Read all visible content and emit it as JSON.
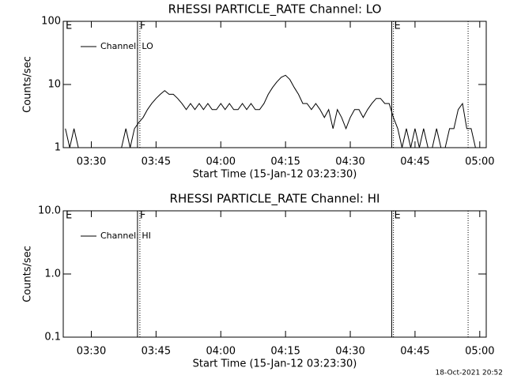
{
  "chart_data": [
    {
      "type": "line",
      "title": "RHESSI PARTICLE_RATE Channel: LO",
      "xlabel": "Start Time (15-Jan-12 03:23:30)",
      "ylabel": "Counts/sec",
      "log_y": true,
      "legend": "upper left",
      "xlim": [
        "03:23:30",
        "05:01:30"
      ],
      "xticks": [
        "03:30",
        "03:45",
        "04:00",
        "04:15",
        "04:30",
        "04:45",
        "05:00"
      ],
      "ylim": [
        1,
        100
      ],
      "yticks": [
        1,
        10,
        100
      ],
      "x": [
        "03:24",
        "03:25",
        "03:26",
        "03:27",
        "03:28",
        "03:29",
        "03:30",
        "03:31",
        "03:32",
        "03:33",
        "03:34",
        "03:35",
        "03:36",
        "03:37",
        "03:38",
        "03:39",
        "03:40",
        "03:41",
        "03:42",
        "03:43",
        "03:44",
        "03:45",
        "03:46",
        "03:47",
        "03:48",
        "03:49",
        "03:50",
        "03:51",
        "03:52",
        "03:53",
        "03:54",
        "03:55",
        "03:56",
        "03:57",
        "03:58",
        "03:59",
        "04:00",
        "04:01",
        "04:02",
        "04:03",
        "04:04",
        "04:05",
        "04:06",
        "04:07",
        "04:08",
        "04:09",
        "04:10",
        "04:11",
        "04:12",
        "04:13",
        "04:14",
        "04:15",
        "04:16",
        "04:17",
        "04:18",
        "04:19",
        "04:20",
        "04:21",
        "04:22",
        "04:23",
        "04:24",
        "04:25",
        "04:26",
        "04:27",
        "04:28",
        "04:29",
        "04:30",
        "04:31",
        "04:32",
        "04:33",
        "04:34",
        "04:35",
        "04:36",
        "04:37",
        "04:38",
        "04:39",
        "04:40",
        "04:41",
        "04:42",
        "04:43",
        "04:44",
        "04:45",
        "04:46",
        "04:47",
        "04:48",
        "04:49",
        "04:50",
        "04:51",
        "04:52",
        "04:53",
        "04:54",
        "04:55",
        "04:56",
        "04:57",
        "04:58",
        "04:59",
        "05:00"
      ],
      "series": [
        {
          "name": "Channel: LO",
          "color": "#000000",
          "values": [
            2,
            1,
            2,
            1,
            1,
            1,
            1,
            1,
            1,
            1,
            1,
            1,
            1,
            1,
            2,
            1,
            2,
            2.5,
            3,
            4,
            5,
            6,
            7,
            8,
            7,
            7,
            6,
            5,
            4,
            5,
            4,
            5,
            4,
            5,
            4,
            4,
            5,
            4,
            5,
            4,
            4,
            5,
            4,
            5,
            4,
            4,
            5,
            7,
            9,
            11,
            13,
            14,
            12,
            9,
            7,
            5,
            5,
            4,
            5,
            4,
            3,
            4,
            2,
            4,
            3,
            2,
            3,
            4,
            4,
            3,
            4,
            5,
            6,
            6,
            5,
            5,
            3,
            2,
            1,
            2,
            1,
            2,
            1,
            2,
            1,
            1,
            2,
            1,
            1,
            2,
            2,
            4,
            5,
            2,
            2,
            1,
            1
          ]
        }
      ],
      "markers": [
        {
          "x": "03:23:30",
          "style": "solid",
          "label": "E"
        },
        {
          "x": "03:40:42",
          "style": "solid",
          "label": "F"
        },
        {
          "x": "03:41:15",
          "style": "dotted"
        },
        {
          "x": "04:39:36",
          "style": "solid",
          "label": "E"
        },
        {
          "x": "04:40:00",
          "style": "dotted"
        },
        {
          "x": "04:57:18",
          "style": "dotted"
        }
      ]
    },
    {
      "type": "line",
      "title": "RHESSI PARTICLE_RATE Channel: HI",
      "xlabel": "Start Time (15-Jan-12 03:23:30)",
      "ylabel": "Counts/sec",
      "log_y": true,
      "legend": "upper left",
      "xlim": [
        "03:23:30",
        "05:01:30"
      ],
      "xticks": [
        "03:30",
        "03:45",
        "04:00",
        "04:15",
        "04:30",
        "04:45",
        "05:00"
      ],
      "ylim": [
        0.1,
        10
      ],
      "yticks": [
        0.1,
        {
          "value": 1,
          "label": "1.0"
        },
        {
          "value": 10,
          "label": "10.0"
        }
      ],
      "x": [],
      "series": [
        {
          "name": "Channel: HI",
          "color": "#000000",
          "values": []
        }
      ],
      "markers": [
        {
          "x": "03:23:30",
          "style": "solid",
          "label": "E"
        },
        {
          "x": "03:40:42",
          "style": "solid",
          "label": "F"
        },
        {
          "x": "03:41:15",
          "style": "dotted"
        },
        {
          "x": "04:39:36",
          "style": "solid",
          "label": "E"
        },
        {
          "x": "04:40:00",
          "style": "dotted"
        },
        {
          "x": "04:57:18",
          "style": "dotted"
        }
      ]
    }
  ],
  "footer": "18-Oct-2021 20:52"
}
